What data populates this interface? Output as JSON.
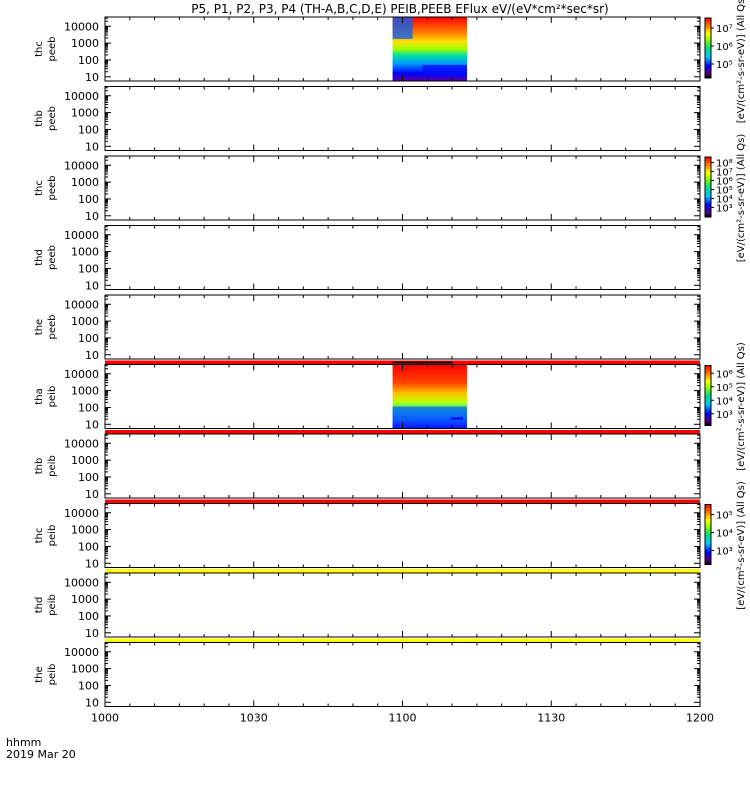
{
  "chart_data": {
    "type": "heatmap",
    "title": "P5, P1, P2, P3, P4 (TH-A,B,C,D,E) PEIB,PEEB EFlux eV/(eV*cm²*sec*sr)",
    "x_header": [
      "hhmm",
      "2019 Mar 20"
    ],
    "x_ticks": [
      "1000",
      "1030",
      "1100",
      "1130",
      "1200"
    ],
    "x_range": [
      "10:00",
      "12:00"
    ],
    "y_ticks": [
      "10",
      "100",
      "1000",
      "10000"
    ],
    "y_scale": "log",
    "panels": [
      {
        "label": [
          "thc",
          "peeb"
        ],
        "data_span": [
          "10:58",
          "11:13"
        ],
        "colorbar_labels": [
          "10⁵",
          "10⁶",
          "10⁷"
        ],
        "units": "[eV/(cm²-s-sr-eV)] (All Qs)",
        "band_color": ""
      },
      {
        "label": [
          "thb",
          "peeb"
        ],
        "data_span": [],
        "colorbar_labels": [],
        "units": "[eV/(cm²-s-sr-eV)] (All Qs)",
        "band_color": ""
      },
      {
        "label": [
          "thc",
          "peeb"
        ],
        "data_span": [],
        "colorbar_labels": [
          "10³",
          "10⁴",
          "10⁵",
          "10⁶",
          "10⁷",
          "10⁸"
        ],
        "units": "[eV/(cm²-s-sr-eV)] (All Qs)",
        "band_color": ""
      },
      {
        "label": [
          "thd",
          "peeb"
        ],
        "data_span": [],
        "colorbar_labels": [],
        "units": "",
        "band_color": ""
      },
      {
        "label": [
          "the",
          "peeb"
        ],
        "data_span": [],
        "colorbar_labels": [],
        "units": "",
        "band_color": "#ff0000"
      },
      {
        "label": [
          "tha",
          "peib"
        ],
        "data_span": [
          "10:58",
          "11:13"
        ],
        "colorbar_labels": [
          "10³",
          "10⁴",
          "10⁵",
          "10⁶"
        ],
        "units": "[eV/(cm²-s-sr-eV)] (All Qs)",
        "band_color": "#ff0000"
      },
      {
        "label": [
          "thb",
          "peib"
        ],
        "data_span": [],
        "colorbar_labels": [],
        "units": "",
        "band_color": "#ff0000"
      },
      {
        "label": [
          "thc",
          "peib"
        ],
        "data_span": [],
        "colorbar_labels": [
          "10³",
          "10⁴",
          "10⁵"
        ],
        "units": "[eV/(cm²-s-sr-eV)] (All Qs)",
        "band_color": "#ffff00"
      },
      {
        "label": [
          "thd",
          "peib"
        ],
        "data_span": [],
        "colorbar_labels": [],
        "units": "",
        "band_color": "#ffff00"
      },
      {
        "label": [
          "the",
          "peib"
        ],
        "data_span": [],
        "colorbar_labels": [],
        "units": "",
        "band_color": ""
      }
    ]
  }
}
